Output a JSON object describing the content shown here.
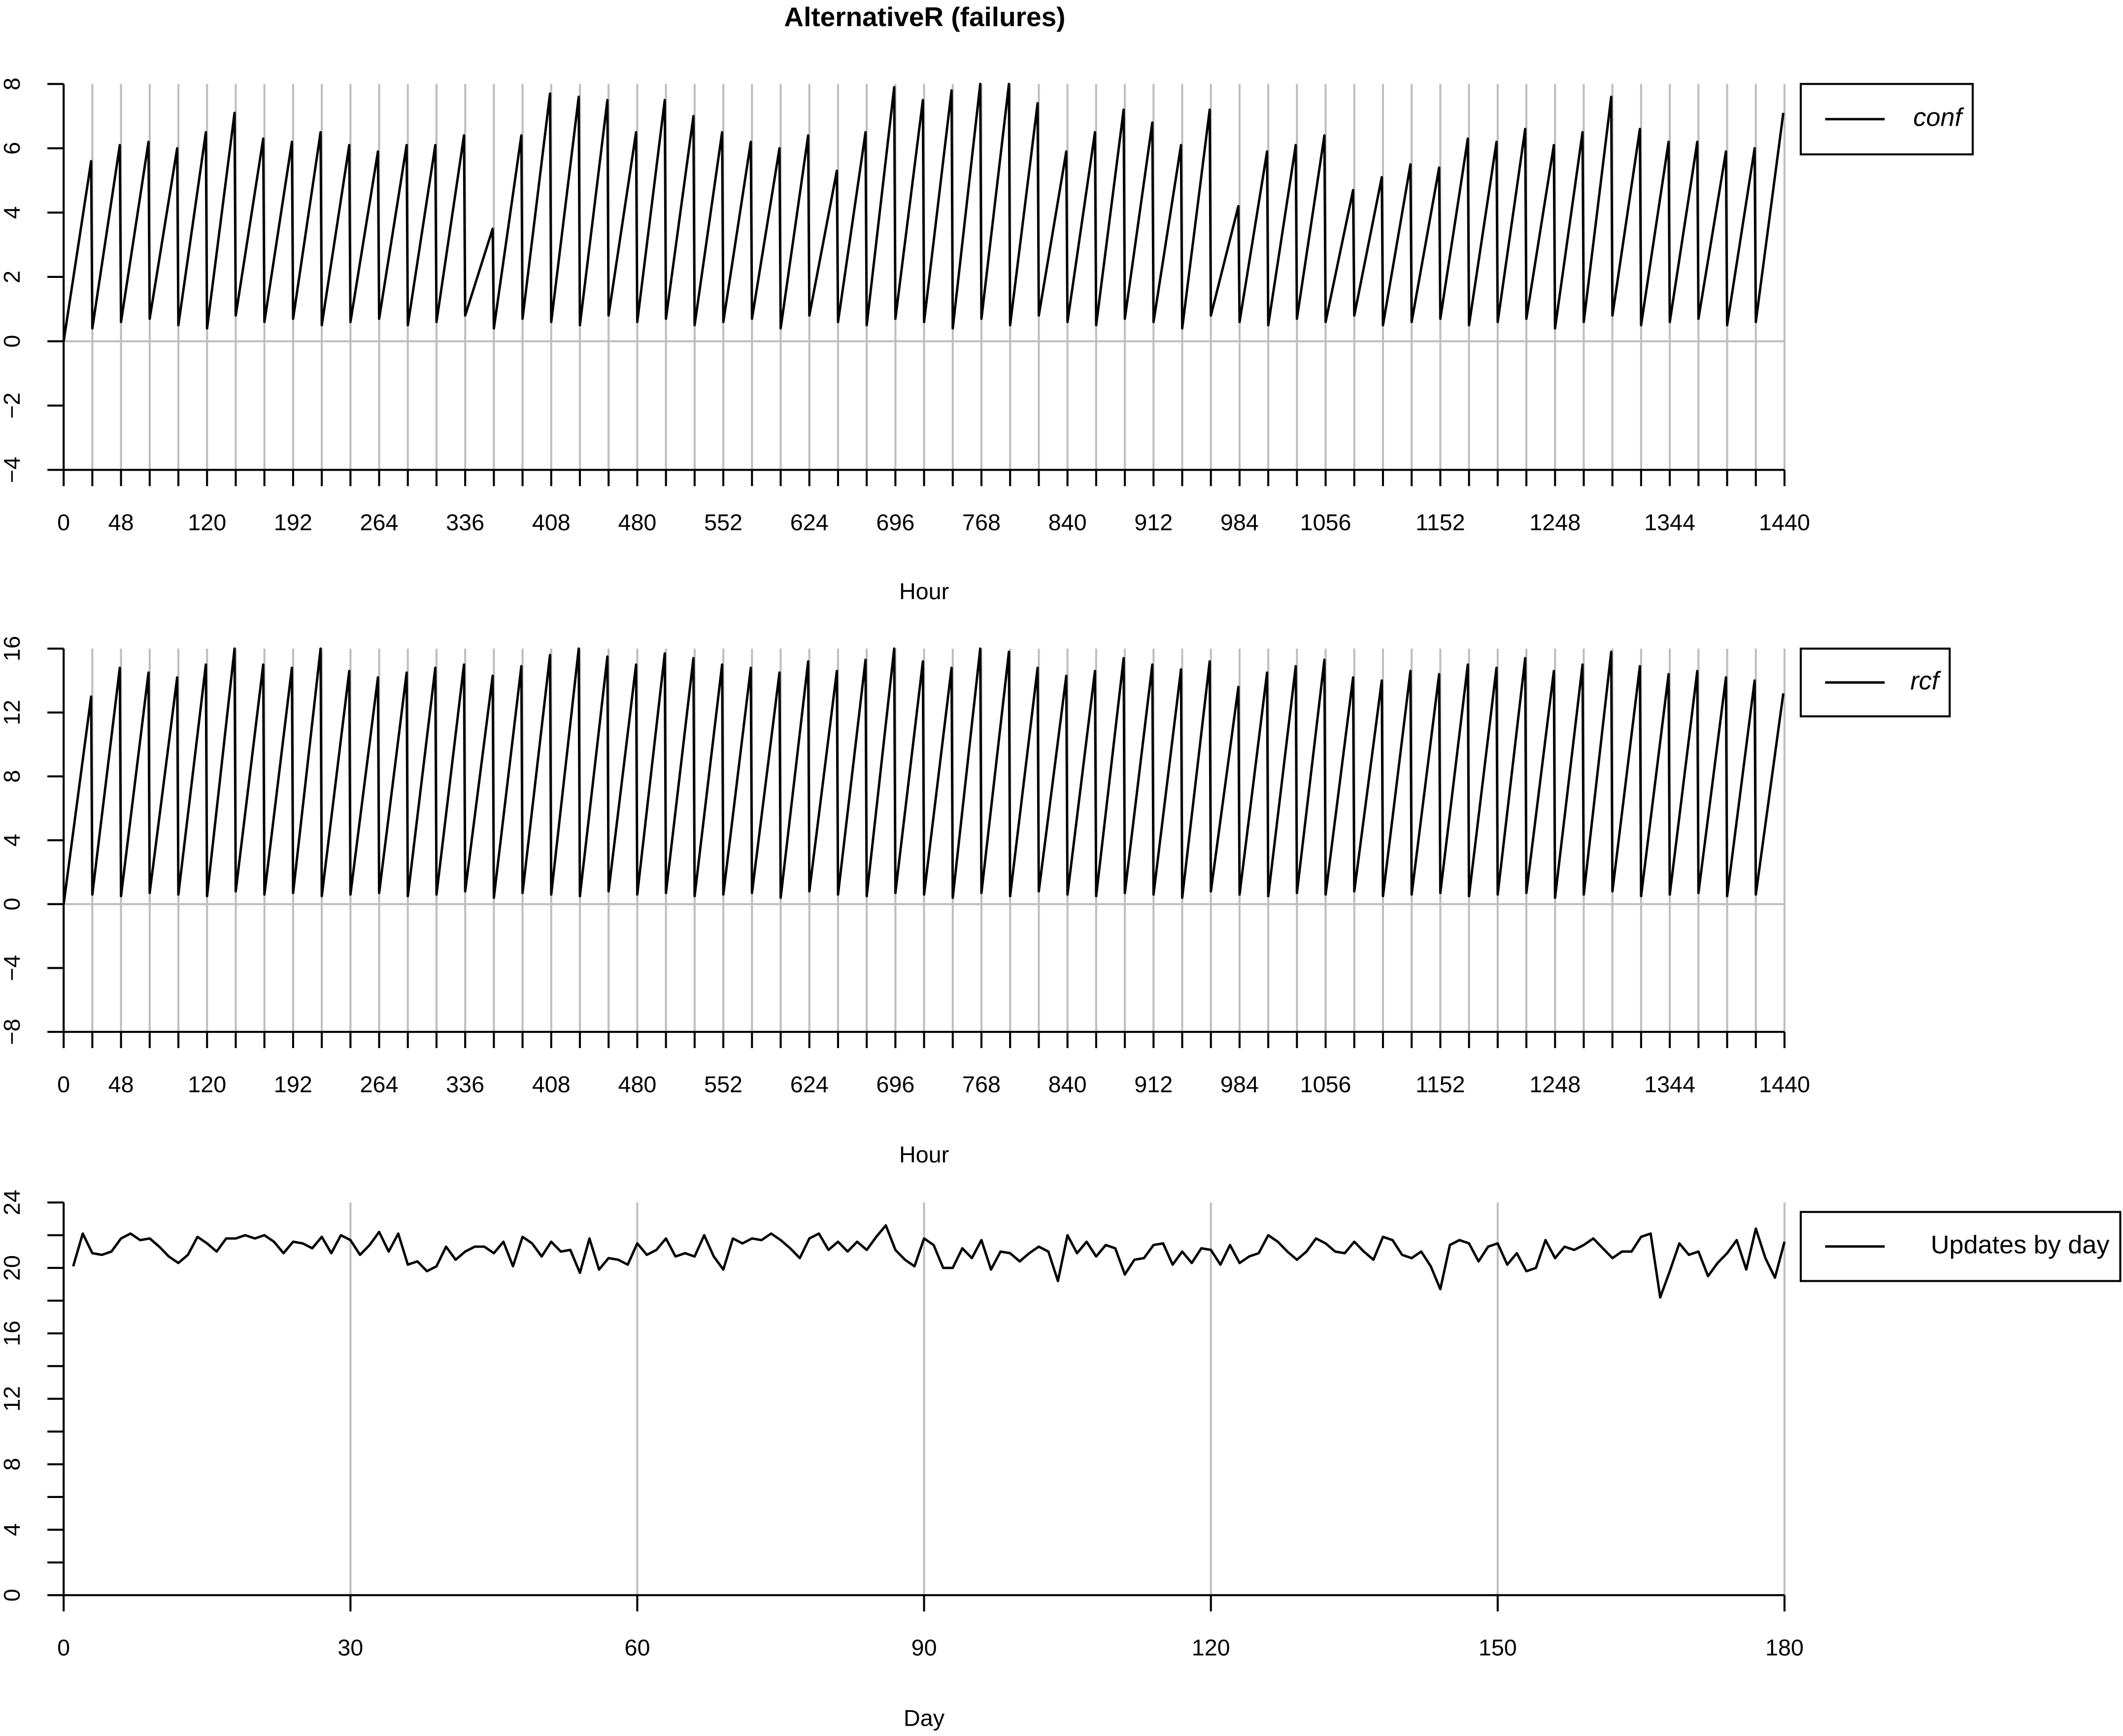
{
  "chart_data": [
    {
      "type": "line",
      "title": "AlternativeR (failures)",
      "xlabel": "Hour",
      "legend": "topright",
      "grid": true,
      "hline": 0,
      "xlim": [
        0,
        1440
      ],
      "xticks": [
        0,
        48,
        120,
        192,
        264,
        336,
        408,
        480,
        552,
        624,
        696,
        768,
        840,
        912,
        984,
        1056,
        1152,
        1248,
        1344,
        1440
      ],
      "xminor_ticks": [
        24,
        72,
        96,
        144,
        168,
        216,
        240,
        288,
        312,
        360,
        384,
        432,
        456,
        504,
        528,
        576,
        600,
        648,
        672,
        720,
        744,
        792,
        816,
        864,
        888,
        936,
        960,
        1008,
        1032,
        1080,
        1104,
        1128,
        1176,
        1200,
        1224,
        1272,
        1296,
        1320,
        1368,
        1392,
        1416
      ],
      "ylim": [
        -4,
        8
      ],
      "yticks": [
        {
          "value": -4,
          "label": "−4"
        },
        {
          "value": -2,
          "label": "−2"
        },
        0,
        2,
        4,
        6,
        8
      ],
      "x": [
        0,
        23,
        24,
        47,
        48,
        71,
        72,
        95,
        96,
        119,
        120,
        143,
        144,
        167,
        168,
        191,
        192,
        215,
        216,
        239,
        240,
        263,
        264,
        287,
        288,
        311,
        312,
        335,
        336,
        359,
        360,
        383,
        384,
        407,
        408,
        431,
        432,
        455,
        456,
        479,
        480,
        503,
        504,
        527,
        528,
        551,
        552,
        575,
        576,
        599,
        600,
        623,
        624,
        647,
        648,
        671,
        672,
        695,
        696,
        719,
        720,
        743,
        744,
        767,
        768,
        791,
        792,
        815,
        816,
        839,
        840,
        863,
        864,
        887,
        888,
        911,
        912,
        935,
        936,
        959,
        960,
        983,
        984,
        1007,
        1008,
        1031,
        1032,
        1055,
        1056,
        1079,
        1080,
        1103,
        1104,
        1127,
        1128,
        1151,
        1152,
        1175,
        1176,
        1199,
        1200,
        1223,
        1224,
        1247,
        1248,
        1271,
        1272,
        1295,
        1296,
        1319,
        1320,
        1343,
        1344,
        1367,
        1368,
        1391,
        1392,
        1415,
        1416,
        1439
      ],
      "series": [
        {
          "name": "conf",
          "color": "#000000",
          "values": [
            0.0,
            5.6,
            0.4,
            6.1,
            0.6,
            6.2,
            0.7,
            6.0,
            0.5,
            6.5,
            0.4,
            7.1,
            0.8,
            6.3,
            0.6,
            6.2,
            0.7,
            6.5,
            0.5,
            6.1,
            0.6,
            5.9,
            0.7,
            6.1,
            0.5,
            6.1,
            0.6,
            6.4,
            0.8,
            3.5,
            0.4,
            6.4,
            0.7,
            7.7,
            0.6,
            7.6,
            0.5,
            7.5,
            0.8,
            6.5,
            0.6,
            7.5,
            0.7,
            7.0,
            0.5,
            6.5,
            0.6,
            6.2,
            0.7,
            6.0,
            0.4,
            6.4,
            0.8,
            5.3,
            0.6,
            6.5,
            0.5,
            7.9,
            0.7,
            7.5,
            0.6,
            7.8,
            0.4,
            8.0,
            0.7,
            8.0,
            0.5,
            7.4,
            0.8,
            5.9,
            0.6,
            6.5,
            0.5,
            7.2,
            0.7,
            6.8,
            0.6,
            6.1,
            0.4,
            7.2,
            0.8,
            4.2,
            0.6,
            5.9,
            0.5,
            6.1,
            0.7,
            6.4,
            0.6,
            4.7,
            0.8,
            5.1,
            0.5,
            5.5,
            0.6,
            5.4,
            0.7,
            6.3,
            0.5,
            6.2,
            0.6,
            6.6,
            0.7,
            6.1,
            0.4,
            6.5,
            0.6,
            7.6,
            0.8,
            6.6,
            0.5,
            6.2,
            0.6,
            6.2,
            0.7,
            5.9,
            0.5,
            6.0,
            0.6,
            7.1
          ]
        }
      ]
    },
    {
      "type": "line",
      "xlabel": "Hour",
      "legend": "topright",
      "grid": true,
      "hline": 0,
      "xlim": [
        0,
        1440
      ],
      "xticks": [
        0,
        48,
        120,
        192,
        264,
        336,
        408,
        480,
        552,
        624,
        696,
        768,
        840,
        912,
        984,
        1056,
        1152,
        1248,
        1344,
        1440
      ],
      "xminor_ticks": [
        24,
        72,
        96,
        144,
        168,
        216,
        240,
        288,
        312,
        360,
        384,
        432,
        456,
        504,
        528,
        576,
        600,
        648,
        672,
        720,
        744,
        792,
        816,
        864,
        888,
        936,
        960,
        1008,
        1032,
        1080,
        1104,
        1128,
        1176,
        1200,
        1224,
        1272,
        1296,
        1320,
        1368,
        1392,
        1416
      ],
      "ylim": [
        -8,
        16
      ],
      "yticks": [
        {
          "value": -8,
          "label": "−8"
        },
        {
          "value": -4,
          "label": "−4"
        },
        0,
        4,
        8,
        12,
        16
      ],
      "x": [
        0,
        23,
        24,
        47,
        48,
        71,
        72,
        95,
        96,
        119,
        120,
        143,
        144,
        167,
        168,
        191,
        192,
        215,
        216,
        239,
        240,
        263,
        264,
        287,
        288,
        311,
        312,
        335,
        336,
        359,
        360,
        383,
        384,
        407,
        408,
        431,
        432,
        455,
        456,
        479,
        480,
        503,
        504,
        527,
        528,
        551,
        552,
        575,
        576,
        599,
        600,
        623,
        624,
        647,
        648,
        671,
        672,
        695,
        696,
        719,
        720,
        743,
        744,
        767,
        768,
        791,
        792,
        815,
        816,
        839,
        840,
        863,
        864,
        887,
        888,
        911,
        912,
        935,
        936,
        959,
        960,
        983,
        984,
        1007,
        1008,
        1031,
        1032,
        1055,
        1056,
        1079,
        1080,
        1103,
        1104,
        1127,
        1128,
        1151,
        1152,
        1175,
        1176,
        1199,
        1200,
        1223,
        1224,
        1247,
        1248,
        1271,
        1272,
        1295,
        1296,
        1319,
        1320,
        1343,
        1344,
        1367,
        1368,
        1391,
        1392,
        1415,
        1416,
        1439
      ],
      "series": [
        {
          "name": "rcf",
          "color": "#000000",
          "values": [
            0.0,
            13.0,
            0.6,
            14.8,
            0.5,
            14.5,
            0.7,
            14.2,
            0.6,
            15.0,
            0.5,
            16.0,
            0.8,
            15.0,
            0.6,
            14.8,
            0.7,
            16.0,
            0.5,
            14.6,
            0.6,
            14.2,
            0.7,
            14.5,
            0.5,
            14.8,
            0.6,
            15.0,
            0.8,
            14.3,
            0.4,
            14.9,
            0.7,
            15.6,
            0.6,
            16.0,
            0.5,
            15.5,
            0.8,
            15.0,
            0.6,
            15.7,
            0.7,
            15.4,
            0.5,
            15.0,
            0.6,
            14.8,
            0.7,
            14.5,
            0.4,
            15.2,
            0.8,
            14.6,
            0.6,
            15.3,
            0.5,
            16.0,
            0.7,
            15.2,
            0.6,
            14.8,
            0.4,
            16.0,
            0.7,
            15.8,
            0.5,
            14.8,
            0.8,
            14.3,
            0.6,
            14.6,
            0.5,
            15.4,
            0.7,
            15.0,
            0.6,
            14.7,
            0.4,
            15.2,
            0.8,
            13.6,
            0.6,
            14.5,
            0.5,
            14.9,
            0.7,
            15.3,
            0.6,
            14.2,
            0.8,
            14.0,
            0.5,
            14.6,
            0.6,
            14.4,
            0.7,
            15.0,
            0.5,
            14.8,
            0.6,
            15.4,
            0.7,
            14.6,
            0.4,
            15.0,
            0.6,
            15.8,
            0.8,
            14.9,
            0.5,
            14.4,
            0.6,
            14.6,
            0.7,
            14.2,
            0.5,
            14.0,
            0.6,
            13.2
          ]
        }
      ]
    },
    {
      "type": "line",
      "xlabel": "Day",
      "legend": "topright",
      "grid": true,
      "xlim": [
        0,
        180
      ],
      "xticks": [
        0,
        30,
        60,
        90,
        120,
        150,
        180
      ],
      "ylim": [
        0,
        24
      ],
      "yticks": [
        0,
        4,
        8,
        12,
        16,
        20,
        24
      ],
      "yminor_ticks": [
        2,
        6,
        10,
        14,
        18,
        22
      ],
      "x": [
        1,
        2,
        3,
        4,
        5,
        6,
        7,
        8,
        9,
        10,
        11,
        12,
        13,
        14,
        15,
        16,
        17,
        18,
        19,
        20,
        21,
        22,
        23,
        24,
        25,
        26,
        27,
        28,
        29,
        30,
        31,
        32,
        33,
        34,
        35,
        36,
        37,
        38,
        39,
        40,
        41,
        42,
        43,
        44,
        45,
        46,
        47,
        48,
        49,
        50,
        51,
        52,
        53,
        54,
        55,
        56,
        57,
        58,
        59,
        60,
        61,
        62,
        63,
        64,
        65,
        66,
        67,
        68,
        69,
        70,
        71,
        72,
        73,
        74,
        75,
        76,
        77,
        78,
        79,
        80,
        81,
        82,
        83,
        84,
        85,
        86,
        87,
        88,
        89,
        90,
        91,
        92,
        93,
        94,
        95,
        96,
        97,
        98,
        99,
        100,
        101,
        102,
        103,
        104,
        105,
        106,
        107,
        108,
        109,
        110,
        111,
        112,
        113,
        114,
        115,
        116,
        117,
        118,
        119,
        120,
        121,
        122,
        123,
        124,
        125,
        126,
        127,
        128,
        129,
        130,
        131,
        132,
        133,
        134,
        135,
        136,
        137,
        138,
        139,
        140,
        141,
        142,
        143,
        144,
        145,
        146,
        147,
        148,
        149,
        150,
        151,
        152,
        153,
        154,
        155,
        156,
        157,
        158,
        159,
        160,
        161,
        162,
        163,
        164,
        165,
        166,
        167,
        168,
        169,
        170,
        171,
        172,
        173,
        174,
        175,
        176,
        177,
        178,
        179,
        180
      ],
      "series": [
        {
          "name": "Updates by day",
          "color": "#000000",
          "values": [
            20.1,
            22.1,
            20.9,
            20.8,
            21.0,
            21.8,
            22.1,
            21.7,
            21.8,
            21.3,
            20.7,
            20.3,
            20.8,
            21.9,
            21.5,
            21.0,
            21.8,
            21.8,
            22.0,
            21.8,
            22.0,
            21.6,
            20.9,
            21.6,
            21.5,
            21.2,
            21.9,
            20.9,
            22.0,
            21.7,
            20.8,
            21.4,
            22.2,
            21.0,
            22.1,
            20.2,
            20.4,
            19.8,
            20.1,
            21.3,
            20.5,
            21.0,
            21.3,
            21.3,
            20.9,
            21.6,
            20.1,
            21.9,
            21.5,
            20.7,
            21.6,
            21.0,
            21.1,
            19.7,
            21.8,
            19.9,
            20.6,
            20.5,
            20.2,
            21.5,
            20.8,
            21.1,
            21.8,
            20.7,
            20.9,
            20.7,
            22.0,
            20.7,
            19.9,
            21.8,
            21.5,
            21.8,
            21.7,
            22.1,
            21.7,
            21.2,
            20.6,
            21.8,
            22.1,
            21.1,
            21.6,
            21.0,
            21.6,
            21.1,
            21.9,
            22.6,
            21.1,
            20.5,
            20.1,
            21.8,
            21.4,
            20.0,
            20.0,
            21.2,
            20.6,
            21.7,
            19.9,
            21.0,
            20.9,
            20.4,
            20.9,
            21.3,
            21.0,
            19.2,
            22.0,
            20.9,
            21.6,
            20.7,
            21.4,
            21.2,
            19.6,
            20.5,
            20.6,
            21.4,
            21.5,
            20.2,
            21.0,
            20.3,
            21.2,
            21.1,
            20.2,
            21.4,
            20.3,
            20.7,
            20.9,
            22.0,
            21.6,
            21.0,
            20.5,
            21.0,
            21.8,
            21.5,
            21.0,
            20.9,
            21.6,
            21.0,
            20.5,
            21.9,
            21.7,
            20.8,
            20.6,
            21.0,
            20.1,
            18.7,
            21.4,
            21.7,
            21.5,
            20.4,
            21.3,
            21.5,
            20.2,
            20.9,
            19.8,
            20.0,
            21.7,
            20.6,
            21.3,
            21.1,
            21.4,
            21.8,
            21.2,
            20.6,
            21.0,
            21.0,
            21.9,
            22.1,
            18.2,
            19.8,
            21.5,
            20.8,
            21.0,
            19.5,
            20.3,
            20.9,
            21.7,
            19.9,
            22.4,
            20.6,
            19.4,
            21.6
          ]
        }
      ]
    }
  ]
}
